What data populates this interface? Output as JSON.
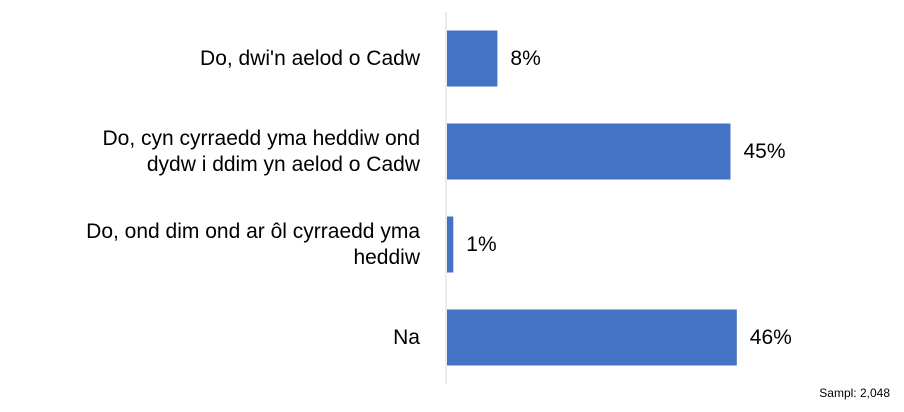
{
  "chart_data": {
    "type": "bar",
    "orientation": "horizontal",
    "categories": [
      "Do, dwi'n aelod o Cadw",
      "Do, cyn cyrraedd yma heddiw ond dydw i ddim yn aelod o Cadw",
      "Do, ond dim ond ar ôl cyrraedd yma heddiw",
      "Na"
    ],
    "category_lines": [
      [
        "Do, dwi'n aelod o Cadw"
      ],
      [
        "Do, cyn cyrraedd yma heddiw ond",
        "dydw i ddim yn aelod o Cadw"
      ],
      [
        "Do, ond dim ond ar ôl cyrraedd yma",
        "heddiw"
      ],
      [
        "Na"
      ]
    ],
    "values": [
      8,
      45,
      1,
      46
    ],
    "value_labels": [
      "8%",
      "45%",
      "1%",
      "46%"
    ],
    "unit": "%",
    "xlim": [
      0,
      50
    ],
    "bar_color": "#4472C4",
    "axis_color": "#D9D9D9",
    "grid": false,
    "legend": "none"
  },
  "note": "Sampl: 2,048"
}
